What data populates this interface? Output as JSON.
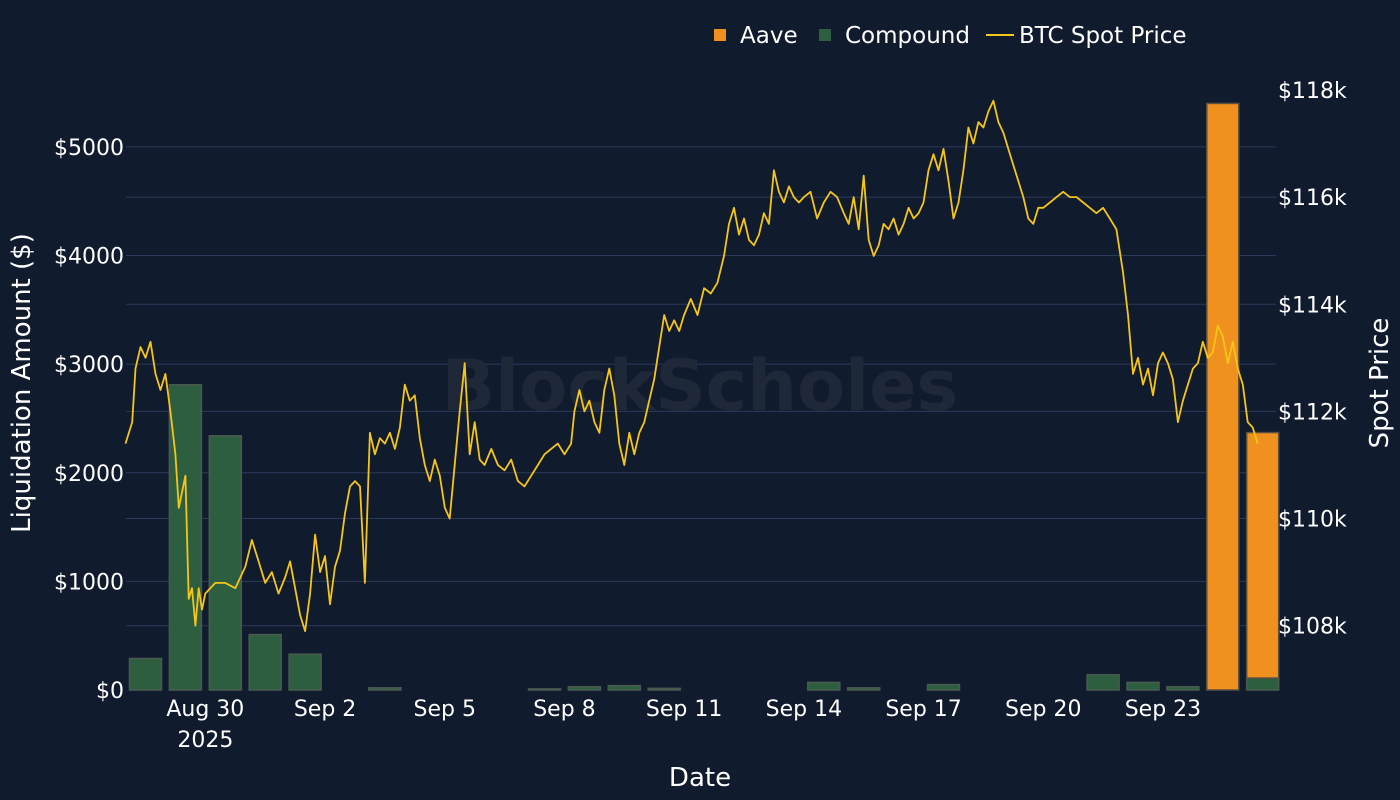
{
  "watermark": "BlockScholes",
  "colors": {
    "background": "#111b2e",
    "grid": "#2a3a5a",
    "aave": "#f0901f",
    "compound": "#2d5e40",
    "btc": "#f5c518"
  },
  "chart_data": {
    "type": "bar",
    "xlabel": "Date",
    "ylabel": "Liquidation Amount ($)",
    "y2label": "Spot Price",
    "legend_position": "top-right",
    "grid": true,
    "x_ticks": [
      "Aug 30\n2025",
      "Sep 2",
      "Sep 5",
      "Sep 8",
      "Sep 11",
      "Sep 14",
      "Sep 17",
      "Sep 20",
      "Sep 23"
    ],
    "y_ticks": [
      "$0",
      "$1000",
      "$2000",
      "$3000",
      "$4000",
      "$5000"
    ],
    "y2_ticks": [
      "$108k",
      "$110k",
      "$112k",
      "$114k",
      "$116k",
      "$118k"
    ],
    "ylim": [
      0,
      5450
    ],
    "y2lim": [
      106800,
      117850
    ],
    "dates": [
      "2025-08-28",
      "2025-08-29",
      "2025-08-30",
      "2025-08-31",
      "2025-09-01",
      "2025-09-02",
      "2025-09-03",
      "2025-09-04",
      "2025-09-05",
      "2025-09-06",
      "2025-09-07",
      "2025-09-08",
      "2025-09-09",
      "2025-09-10",
      "2025-09-11",
      "2025-09-12",
      "2025-09-13",
      "2025-09-14",
      "2025-09-15",
      "2025-09-16",
      "2025-09-17",
      "2025-09-18",
      "2025-09-19",
      "2025-09-20",
      "2025-09-21",
      "2025-09-22",
      "2025-09-23",
      "2025-09-24",
      "2025-09-25"
    ],
    "series": [
      {
        "name": "Aave",
        "type": "bar",
        "values": [
          0,
          0,
          0,
          0,
          0,
          0,
          0,
          0,
          0,
          0,
          0,
          0,
          0,
          0,
          0,
          0,
          0,
          0,
          0,
          0,
          0,
          0,
          0,
          0,
          0,
          0,
          0,
          5400,
          2260
        ]
      },
      {
        "name": "Compound",
        "type": "bar",
        "values": [
          290,
          2810,
          2340,
          510,
          330,
          0,
          20,
          0,
          0,
          0,
          10,
          30,
          40,
          15,
          0,
          0,
          0,
          70,
          20,
          0,
          50,
          0,
          0,
          0,
          140,
          70,
          30,
          0,
          110
        ]
      },
      {
        "name": "BTC Spot Price",
        "type": "line",
        "points": [
          [
            "2025-08-28T00:00",
            111400
          ],
          [
            "2025-08-28T04:00",
            111800
          ],
          [
            "2025-08-28T06:00",
            112800
          ],
          [
            "2025-08-28T09:00",
            113200
          ],
          [
            "2025-08-28T12:00",
            113000
          ],
          [
            "2025-08-28T15:00",
            113300
          ],
          [
            "2025-08-28T18:00",
            112700
          ],
          [
            "2025-08-28T21:00",
            112400
          ],
          [
            "2025-08-29T00:00",
            112700
          ],
          [
            "2025-08-29T03:00",
            112000
          ],
          [
            "2025-08-29T06:00",
            111200
          ],
          [
            "2025-08-29T08:00",
            110200
          ],
          [
            "2025-08-29T10:00",
            110500
          ],
          [
            "2025-08-29T12:00",
            110800
          ],
          [
            "2025-08-29T14:00",
            108500
          ],
          [
            "2025-08-29T16:00",
            108700
          ],
          [
            "2025-08-29T18:00",
            108000
          ],
          [
            "2025-08-29T20:00",
            108700
          ],
          [
            "2025-08-29T22:00",
            108300
          ],
          [
            "2025-08-30T00:00",
            108600
          ],
          [
            "2025-08-30T06:00",
            108800
          ],
          [
            "2025-08-30T12:00",
            108800
          ],
          [
            "2025-08-30T18:00",
            108700
          ],
          [
            "2025-08-31T00:00",
            109100
          ],
          [
            "2025-08-31T04:00",
            109600
          ],
          [
            "2025-08-31T08:00",
            109200
          ],
          [
            "2025-08-31T12:00",
            108800
          ],
          [
            "2025-08-31T16:00",
            109000
          ],
          [
            "2025-08-31T20:00",
            108600
          ],
          [
            "2025-09-01T00:00",
            108900
          ],
          [
            "2025-09-01T03:00",
            109200
          ],
          [
            "2025-09-01T06:00",
            108700
          ],
          [
            "2025-09-01T09:00",
            108200
          ],
          [
            "2025-09-01T12:00",
            107900
          ],
          [
            "2025-09-01T15:00",
            108600
          ],
          [
            "2025-09-01T18:00",
            109700
          ],
          [
            "2025-09-01T21:00",
            109000
          ],
          [
            "2025-09-02T00:00",
            109300
          ],
          [
            "2025-09-02T03:00",
            108400
          ],
          [
            "2025-09-02T06:00",
            109100
          ],
          [
            "2025-09-02T09:00",
            109400
          ],
          [
            "2025-09-02T12:00",
            110100
          ],
          [
            "2025-09-02T15:00",
            110600
          ],
          [
            "2025-09-02T18:00",
            110700
          ],
          [
            "2025-09-02T21:00",
            110600
          ],
          [
            "2025-09-03T00:00",
            108800
          ],
          [
            "2025-09-03T03:00",
            111600
          ],
          [
            "2025-09-03T06:00",
            111200
          ],
          [
            "2025-09-03T09:00",
            111500
          ],
          [
            "2025-09-03T12:00",
            111400
          ],
          [
            "2025-09-03T15:00",
            111600
          ],
          [
            "2025-09-03T18:00",
            111300
          ],
          [
            "2025-09-03T21:00",
            111700
          ],
          [
            "2025-09-04T00:00",
            112500
          ],
          [
            "2025-09-04T03:00",
            112200
          ],
          [
            "2025-09-04T06:00",
            112300
          ],
          [
            "2025-09-04T09:00",
            111500
          ],
          [
            "2025-09-04T12:00",
            111000
          ],
          [
            "2025-09-04T15:00",
            110700
          ],
          [
            "2025-09-04T18:00",
            111100
          ],
          [
            "2025-09-04T21:00",
            110800
          ],
          [
            "2025-09-05T00:00",
            110200
          ],
          [
            "2025-09-05T03:00",
            110000
          ],
          [
            "2025-09-05T06:00",
            111000
          ],
          [
            "2025-09-05T09:00",
            112000
          ],
          [
            "2025-09-05T12:00",
            112900
          ],
          [
            "2025-09-05T15:00",
            111200
          ],
          [
            "2025-09-05T18:00",
            111800
          ],
          [
            "2025-09-05T21:00",
            111100
          ],
          [
            "2025-09-06T00:00",
            111000
          ],
          [
            "2025-09-06T04:00",
            111300
          ],
          [
            "2025-09-06T08:00",
            111000
          ],
          [
            "2025-09-06T12:00",
            110900
          ],
          [
            "2025-09-06T16:00",
            111100
          ],
          [
            "2025-09-06T20:00",
            110700
          ],
          [
            "2025-09-07T00:00",
            110600
          ],
          [
            "2025-09-07T04:00",
            110800
          ],
          [
            "2025-09-07T08:00",
            111000
          ],
          [
            "2025-09-07T12:00",
            111200
          ],
          [
            "2025-09-07T16:00",
            111300
          ],
          [
            "2025-09-07T20:00",
            111400
          ],
          [
            "2025-09-08T00:00",
            111200
          ],
          [
            "2025-09-08T04:00",
            111400
          ],
          [
            "2025-09-08T06:00",
            112000
          ],
          [
            "2025-09-08T09:00",
            112400
          ],
          [
            "2025-09-08T12:00",
            112000
          ],
          [
            "2025-09-08T15:00",
            112200
          ],
          [
            "2025-09-08T18:00",
            111800
          ],
          [
            "2025-09-08T21:00",
            111600
          ],
          [
            "2025-09-09T00:00",
            112400
          ],
          [
            "2025-09-09T03:00",
            112800
          ],
          [
            "2025-09-09T06:00",
            112300
          ],
          [
            "2025-09-09T09:00",
            111400
          ],
          [
            "2025-09-09T12:00",
            111000
          ],
          [
            "2025-09-09T15:00",
            111600
          ],
          [
            "2025-09-09T18:00",
            111200
          ],
          [
            "2025-09-09T21:00",
            111600
          ],
          [
            "2025-09-10T00:00",
            111800
          ],
          [
            "2025-09-10T03:00",
            112200
          ],
          [
            "2025-09-10T06:00",
            112600
          ],
          [
            "2025-09-10T09:00",
            113200
          ],
          [
            "2025-09-10T12:00",
            113800
          ],
          [
            "2025-09-10T15:00",
            113500
          ],
          [
            "2025-09-10T18:00",
            113700
          ],
          [
            "2025-09-10T21:00",
            113500
          ],
          [
            "2025-09-11T00:00",
            113800
          ],
          [
            "2025-09-11T04:00",
            114100
          ],
          [
            "2025-09-11T08:00",
            113800
          ],
          [
            "2025-09-11T12:00",
            114300
          ],
          [
            "2025-09-11T16:00",
            114200
          ],
          [
            "2025-09-11T20:00",
            114400
          ],
          [
            "2025-09-12T00:00",
            114900
          ],
          [
            "2025-09-12T03:00",
            115500
          ],
          [
            "2025-09-12T06:00",
            115800
          ],
          [
            "2025-09-12T09:00",
            115300
          ],
          [
            "2025-09-12T12:00",
            115600
          ],
          [
            "2025-09-12T15:00",
            115200
          ],
          [
            "2025-09-12T18:00",
            115100
          ],
          [
            "2025-09-12T21:00",
            115300
          ],
          [
            "2025-09-13T00:00",
            115700
          ],
          [
            "2025-09-13T03:00",
            115500
          ],
          [
            "2025-09-13T06:00",
            116500
          ],
          [
            "2025-09-13T09:00",
            116100
          ],
          [
            "2025-09-13T12:00",
            115900
          ],
          [
            "2025-09-13T15:00",
            116200
          ],
          [
            "2025-09-13T18:00",
            116000
          ],
          [
            "2025-09-13T21:00",
            115900
          ],
          [
            "2025-09-14T00:00",
            116000
          ],
          [
            "2025-09-14T04:00",
            116100
          ],
          [
            "2025-09-14T08:00",
            115600
          ],
          [
            "2025-09-14T12:00",
            115900
          ],
          [
            "2025-09-14T16:00",
            116100
          ],
          [
            "2025-09-14T20:00",
            116000
          ],
          [
            "2025-09-15T00:00",
            115700
          ],
          [
            "2025-09-15T03:00",
            115500
          ],
          [
            "2025-09-15T06:00",
            116000
          ],
          [
            "2025-09-15T09:00",
            115400
          ],
          [
            "2025-09-15T12:00",
            116400
          ],
          [
            "2025-09-15T15:00",
            115200
          ],
          [
            "2025-09-15T18:00",
            114900
          ],
          [
            "2025-09-15T21:00",
            115100
          ],
          [
            "2025-09-16T00:00",
            115500
          ],
          [
            "2025-09-16T03:00",
            115400
          ],
          [
            "2025-09-16T06:00",
            115600
          ],
          [
            "2025-09-16T09:00",
            115300
          ],
          [
            "2025-09-16T12:00",
            115500
          ],
          [
            "2025-09-16T15:00",
            115800
          ],
          [
            "2025-09-16T18:00",
            115600
          ],
          [
            "2025-09-16T21:00",
            115700
          ],
          [
            "2025-09-17T00:00",
            115900
          ],
          [
            "2025-09-17T03:00",
            116500
          ],
          [
            "2025-09-17T06:00",
            116800
          ],
          [
            "2025-09-17T09:00",
            116500
          ],
          [
            "2025-09-17T12:00",
            116900
          ],
          [
            "2025-09-17T15:00",
            116300
          ],
          [
            "2025-09-17T18:00",
            115600
          ],
          [
            "2025-09-17T21:00",
            115900
          ],
          [
            "2025-09-18T00:00",
            116500
          ],
          [
            "2025-09-18T03:00",
            117300
          ],
          [
            "2025-09-18T06:00",
            117000
          ],
          [
            "2025-09-18T09:00",
            117400
          ],
          [
            "2025-09-18T12:00",
            117300
          ],
          [
            "2025-09-18T15:00",
            117600
          ],
          [
            "2025-09-18T18:00",
            117800
          ],
          [
            "2025-09-18T21:00",
            117400
          ],
          [
            "2025-09-19T00:00",
            117200
          ],
          [
            "2025-09-19T03:00",
            116900
          ],
          [
            "2025-09-19T06:00",
            116600
          ],
          [
            "2025-09-19T09:00",
            116300
          ],
          [
            "2025-09-19T12:00",
            116000
          ],
          [
            "2025-09-19T15:00",
            115600
          ],
          [
            "2025-09-19T18:00",
            115500
          ],
          [
            "2025-09-19T21:00",
            115800
          ],
          [
            "2025-09-20T00:00",
            115800
          ],
          [
            "2025-09-20T04:00",
            115900
          ],
          [
            "2025-09-20T08:00",
            116000
          ],
          [
            "2025-09-20T12:00",
            116100
          ],
          [
            "2025-09-20T16:00",
            116000
          ],
          [
            "2025-09-20T20:00",
            116000
          ],
          [
            "2025-09-21T00:00",
            115900
          ],
          [
            "2025-09-21T04:00",
            115800
          ],
          [
            "2025-09-21T08:00",
            115700
          ],
          [
            "2025-09-21T12:00",
            115800
          ],
          [
            "2025-09-21T16:00",
            115600
          ],
          [
            "2025-09-21T20:00",
            115400
          ],
          [
            "2025-09-22T00:00",
            114600
          ],
          [
            "2025-09-22T03:00",
            113800
          ],
          [
            "2025-09-22T06:00",
            112700
          ],
          [
            "2025-09-22T09:00",
            113000
          ],
          [
            "2025-09-22T12:00",
            112500
          ],
          [
            "2025-09-22T15:00",
            112800
          ],
          [
            "2025-09-22T18:00",
            112300
          ],
          [
            "2025-09-22T21:00",
            112900
          ],
          [
            "2025-09-23T00:00",
            113100
          ],
          [
            "2025-09-23T03:00",
            112900
          ],
          [
            "2025-09-23T06:00",
            112600
          ],
          [
            "2025-09-23T09:00",
            111800
          ],
          [
            "2025-09-23T12:00",
            112200
          ],
          [
            "2025-09-23T15:00",
            112500
          ],
          [
            "2025-09-23T18:00",
            112800
          ],
          [
            "2025-09-23T21:00",
            112900
          ],
          [
            "2025-09-24T00:00",
            113300
          ],
          [
            "2025-09-24T03:00",
            113000
          ],
          [
            "2025-09-24T06:00",
            113100
          ],
          [
            "2025-09-24T09:00",
            113600
          ],
          [
            "2025-09-24T12:00",
            113400
          ],
          [
            "2025-09-24T15:00",
            112900
          ],
          [
            "2025-09-24T18:00",
            113300
          ],
          [
            "2025-09-24T21:00",
            112800
          ],
          [
            "2025-09-25T00:00",
            112500
          ],
          [
            "2025-09-25T03:00",
            111800
          ],
          [
            "2025-09-25T06:00",
            111700
          ],
          [
            "2025-09-25T09:00",
            111400
          ]
        ]
      }
    ]
  }
}
